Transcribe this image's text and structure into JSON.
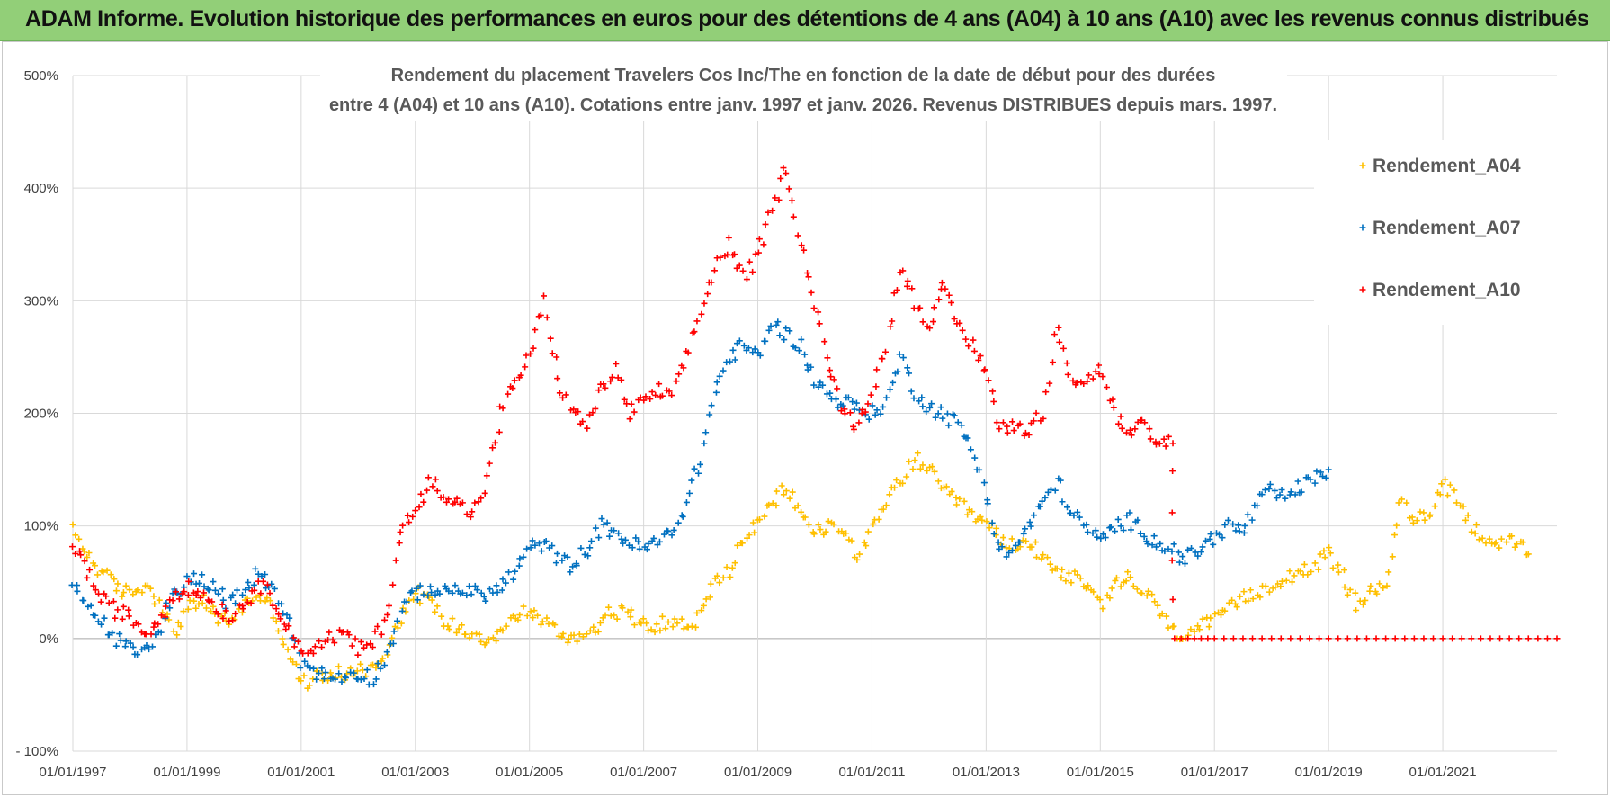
{
  "banner": {
    "title": "ADAM Informe. Evolution historique des performances en euros pour des détentions de 4 ans (A04) à 10 ans (A10) avec les revenus connus distribués"
  },
  "colors": {
    "A04": "#ffc000",
    "A07": "#0070c0",
    "A10": "#ff0000",
    "banner_bg": "#92cf78"
  },
  "chart_data": {
    "type": "scatter",
    "title_lines": [
      "Rendement du placement Travelers Cos Inc/The en fonction de la date de début pour des durées",
      "entre 4 (A04) et 10 ans (A10).  Cotations entre janv. 1997 et janv. 2026.  Revenus DISTRIBUES depuis mars. 1997."
    ],
    "xlabel": "",
    "ylabel": "",
    "x_tick_labels": [
      "01/01/1997",
      "01/01/1999",
      "01/01/2001",
      "01/01/2003",
      "01/01/2005",
      "01/01/2007",
      "01/01/2009",
      "01/01/2011",
      "01/01/2013",
      "01/01/2015",
      "01/01/2017",
      "01/01/2019",
      "01/01/2021"
    ],
    "y_tick_labels": [
      "- 100%",
      "0%",
      "100%",
      "200%",
      "300%",
      "400%",
      "500%"
    ],
    "x_range_years": [
      1997.0,
      2023.0
    ],
    "ylim": [
      -100,
      500
    ],
    "legend_position": "right",
    "series": [
      {
        "name": "Rendement_A04",
        "points": [
          [
            1997.0,
            95
          ],
          [
            1997.25,
            75
          ],
          [
            1997.5,
            60
          ],
          [
            1997.75,
            45
          ],
          [
            1998.0,
            40
          ],
          [
            1998.25,
            48
          ],
          [
            1998.5,
            35
          ],
          [
            1998.75,
            5
          ],
          [
            1999.0,
            25
          ],
          [
            1999.25,
            35
          ],
          [
            1999.5,
            20
          ],
          [
            1999.75,
            15
          ],
          [
            2000.0,
            30
          ],
          [
            2000.25,
            40
          ],
          [
            2000.5,
            25
          ],
          [
            2000.75,
            -10
          ],
          [
            2001.0,
            -40
          ],
          [
            2001.25,
            -35
          ],
          [
            2001.5,
            -30
          ],
          [
            2001.75,
            -33
          ],
          [
            2002.0,
            -25
          ],
          [
            2002.25,
            -28
          ],
          [
            2002.5,
            -10
          ],
          [
            2002.75,
            20
          ],
          [
            2003.0,
            40
          ],
          [
            2003.25,
            35
          ],
          [
            2003.5,
            15
          ],
          [
            2003.75,
            10
          ],
          [
            2004.0,
            5
          ],
          [
            2004.25,
            0
          ],
          [
            2004.5,
            5
          ],
          [
            2004.75,
            20
          ],
          [
            2005.0,
            25
          ],
          [
            2005.25,
            15
          ],
          [
            2005.5,
            5
          ],
          [
            2005.75,
            0
          ],
          [
            2006.0,
            5
          ],
          [
            2006.25,
            15
          ],
          [
            2006.5,
            25
          ],
          [
            2006.75,
            20
          ],
          [
            2007.0,
            15
          ],
          [
            2007.25,
            12
          ],
          [
            2007.5,
            15
          ],
          [
            2007.75,
            10
          ],
          [
            2008.0,
            20
          ],
          [
            2008.25,
            50
          ],
          [
            2008.5,
            60
          ],
          [
            2008.75,
            90
          ],
          [
            2009.0,
            100
          ],
          [
            2009.25,
            120
          ],
          [
            2009.5,
            135
          ],
          [
            2009.75,
            110
          ],
          [
            2010.0,
            95
          ],
          [
            2010.25,
            100
          ],
          [
            2010.5,
            95
          ],
          [
            2010.75,
            75
          ],
          [
            2011.0,
            95
          ],
          [
            2011.25,
            120
          ],
          [
            2011.5,
            140
          ],
          [
            2011.75,
            160
          ],
          [
            2012.0,
            150
          ],
          [
            2012.25,
            130
          ],
          [
            2012.5,
            120
          ],
          [
            2012.75,
            110
          ],
          [
            2013.0,
            100
          ],
          [
            2013.25,
            90
          ],
          [
            2013.5,
            80
          ],
          [
            2013.75,
            85
          ],
          [
            2014.0,
            75
          ],
          [
            2014.25,
            60
          ],
          [
            2014.5,
            55
          ],
          [
            2014.75,
            45
          ],
          [
            2015.0,
            30
          ],
          [
            2015.25,
            45
          ],
          [
            2015.5,
            55
          ],
          [
            2015.75,
            40
          ],
          [
            2016.0,
            30
          ],
          [
            2016.25,
            5
          ],
          [
            2016.5,
            5
          ],
          [
            2016.75,
            10
          ],
          [
            2017.0,
            15
          ],
          [
            2017.25,
            25
          ],
          [
            2017.5,
            35
          ],
          [
            2017.75,
            40
          ],
          [
            2018.0,
            50
          ],
          [
            2018.25,
            55
          ],
          [
            2018.5,
            60
          ],
          [
            2018.75,
            65
          ],
          [
            2019.0,
            75
          ],
          [
            2019.25,
            55
          ],
          [
            2019.5,
            30
          ],
          [
            2019.75,
            40
          ],
          [
            2020.0,
            50
          ],
          [
            2020.25,
            120
          ],
          [
            2020.5,
            105
          ],
          [
            2020.75,
            110
          ],
          [
            2021.0,
            140
          ],
          [
            2021.25,
            125
          ],
          [
            2021.5,
            100
          ],
          [
            2021.75,
            90
          ],
          [
            2022.0,
            85
          ],
          [
            2022.25,
            85
          ],
          [
            2022.5,
            75
          ]
        ]
      },
      {
        "name": "Rendement_A07",
        "points": [
          [
            1997.0,
            45
          ],
          [
            1997.25,
            30
          ],
          [
            1997.5,
            15
          ],
          [
            1997.75,
            0
          ],
          [
            1998.0,
            -10
          ],
          [
            1998.25,
            -12
          ],
          [
            1998.5,
            5
          ],
          [
            1998.75,
            40
          ],
          [
            1999.0,
            50
          ],
          [
            1999.25,
            55
          ],
          [
            1999.5,
            45
          ],
          [
            1999.75,
            30
          ],
          [
            2000.0,
            40
          ],
          [
            2000.25,
            60
          ],
          [
            2000.5,
            45
          ],
          [
            2000.75,
            20
          ],
          [
            2001.0,
            -20
          ],
          [
            2001.25,
            -30
          ],
          [
            2001.5,
            -35
          ],
          [
            2001.75,
            -33
          ],
          [
            2002.0,
            -30
          ],
          [
            2002.25,
            -35
          ],
          [
            2002.5,
            -15
          ],
          [
            2002.75,
            25
          ],
          [
            2003.0,
            40
          ],
          [
            2003.25,
            45
          ],
          [
            2003.5,
            40
          ],
          [
            2003.75,
            45
          ],
          [
            2004.0,
            40
          ],
          [
            2004.25,
            40
          ],
          [
            2004.5,
            45
          ],
          [
            2004.75,
            60
          ],
          [
            2005.0,
            80
          ],
          [
            2005.25,
            85
          ],
          [
            2005.5,
            70
          ],
          [
            2005.75,
            65
          ],
          [
            2006.0,
            80
          ],
          [
            2006.25,
            100
          ],
          [
            2006.5,
            95
          ],
          [
            2006.75,
            85
          ],
          [
            2007.0,
            80
          ],
          [
            2007.25,
            85
          ],
          [
            2007.5,
            95
          ],
          [
            2007.75,
            120
          ],
          [
            2008.0,
            160
          ],
          [
            2008.25,
            220
          ],
          [
            2008.5,
            250
          ],
          [
            2008.75,
            260
          ],
          [
            2009.0,
            250
          ],
          [
            2009.25,
            280
          ],
          [
            2009.5,
            270
          ],
          [
            2009.75,
            260
          ],
          [
            2010.0,
            230
          ],
          [
            2010.25,
            215
          ],
          [
            2010.5,
            210
          ],
          [
            2010.75,
            205
          ],
          [
            2011.0,
            200
          ],
          [
            2011.25,
            210
          ],
          [
            2011.5,
            250
          ],
          [
            2011.75,
            220
          ],
          [
            2012.0,
            205
          ],
          [
            2012.25,
            200
          ],
          [
            2012.5,
            190
          ],
          [
            2012.75,
            170
          ],
          [
            2013.0,
            130
          ],
          [
            2013.25,
            75
          ],
          [
            2013.5,
            80
          ],
          [
            2013.75,
            100
          ],
          [
            2014.0,
            120
          ],
          [
            2014.25,
            140
          ],
          [
            2014.5,
            110
          ],
          [
            2014.75,
            100
          ],
          [
            2015.0,
            85
          ],
          [
            2015.25,
            100
          ],
          [
            2015.5,
            105
          ],
          [
            2015.75,
            95
          ],
          [
            2016.0,
            85
          ],
          [
            2016.25,
            80
          ],
          [
            2016.5,
            70
          ],
          [
            2016.75,
            80
          ],
          [
            2017.0,
            90
          ],
          [
            2017.25,
            100
          ],
          [
            2017.5,
            95
          ],
          [
            2017.75,
            120
          ],
          [
            2018.0,
            130
          ],
          [
            2018.25,
            125
          ],
          [
            2018.5,
            135
          ],
          [
            2018.75,
            140
          ],
          [
            2019.0,
            150
          ]
        ]
      },
      {
        "name": "Rendement_A10",
        "points": [
          [
            1997.0,
            85
          ],
          [
            1997.25,
            60
          ],
          [
            1997.5,
            35
          ],
          [
            1997.75,
            25
          ],
          [
            1998.0,
            20
          ],
          [
            1998.25,
            5
          ],
          [
            1998.5,
            15
          ],
          [
            1998.75,
            40
          ],
          [
            1999.0,
            45
          ],
          [
            1999.25,
            40
          ],
          [
            1999.5,
            30
          ],
          [
            1999.75,
            20
          ],
          [
            2000.0,
            30
          ],
          [
            2000.25,
            50
          ],
          [
            2000.5,
            35
          ],
          [
            2000.75,
            15
          ],
          [
            2001.0,
            -15
          ],
          [
            2001.25,
            -5
          ],
          [
            2001.5,
            0
          ],
          [
            2001.75,
            5
          ],
          [
            2002.0,
            -10
          ],
          [
            2002.25,
            -5
          ],
          [
            2002.5,
            20
          ],
          [
            2002.75,
            100
          ],
          [
            2003.0,
            110
          ],
          [
            2003.25,
            140
          ],
          [
            2003.5,
            130
          ],
          [
            2003.75,
            120
          ],
          [
            2004.0,
            110
          ],
          [
            2004.25,
            140
          ],
          [
            2004.5,
            200
          ],
          [
            2004.75,
            230
          ],
          [
            2005.0,
            250
          ],
          [
            2005.25,
            300
          ],
          [
            2005.5,
            230
          ],
          [
            2005.75,
            200
          ],
          [
            2006.0,
            190
          ],
          [
            2006.25,
            220
          ],
          [
            2006.5,
            240
          ],
          [
            2006.75,
            200
          ],
          [
            2007.0,
            210
          ],
          [
            2007.25,
            220
          ],
          [
            2007.5,
            215
          ],
          [
            2007.75,
            250
          ],
          [
            2008.0,
            290
          ],
          [
            2008.25,
            330
          ],
          [
            2008.5,
            350
          ],
          [
            2008.75,
            320
          ],
          [
            2009.0,
            340
          ],
          [
            2009.25,
            380
          ],
          [
            2009.5,
            420
          ],
          [
            2009.75,
            350
          ],
          [
            2010.0,
            300
          ],
          [
            2010.25,
            240
          ],
          [
            2010.5,
            200
          ],
          [
            2010.75,
            190
          ],
          [
            2011.0,
            220
          ],
          [
            2011.25,
            260
          ],
          [
            2011.5,
            330
          ],
          [
            2011.75,
            300
          ],
          [
            2012.0,
            280
          ],
          [
            2012.25,
            310
          ],
          [
            2012.5,
            280
          ],
          [
            2012.75,
            260
          ],
          [
            2013.0,
            240
          ],
          [
            2013.25,
            185
          ],
          [
            2013.5,
            190
          ],
          [
            2013.75,
            185
          ],
          [
            2014.0,
            200
          ],
          [
            2014.25,
            280
          ],
          [
            2014.5,
            230
          ],
          [
            2014.75,
            230
          ],
          [
            2015.0,
            240
          ],
          [
            2015.25,
            200
          ],
          [
            2015.5,
            180
          ],
          [
            2015.75,
            190
          ],
          [
            2016.0,
            170
          ],
          [
            2016.25,
            180
          ],
          [
            2016.3,
            0
          ],
          [
            2017.0,
            0
          ],
          [
            2018.0,
            0
          ],
          [
            2019.0,
            0
          ],
          [
            2020.0,
            0
          ],
          [
            2021.0,
            0
          ],
          [
            2022.0,
            0
          ],
          [
            2023.0,
            0
          ]
        ]
      }
    ]
  }
}
